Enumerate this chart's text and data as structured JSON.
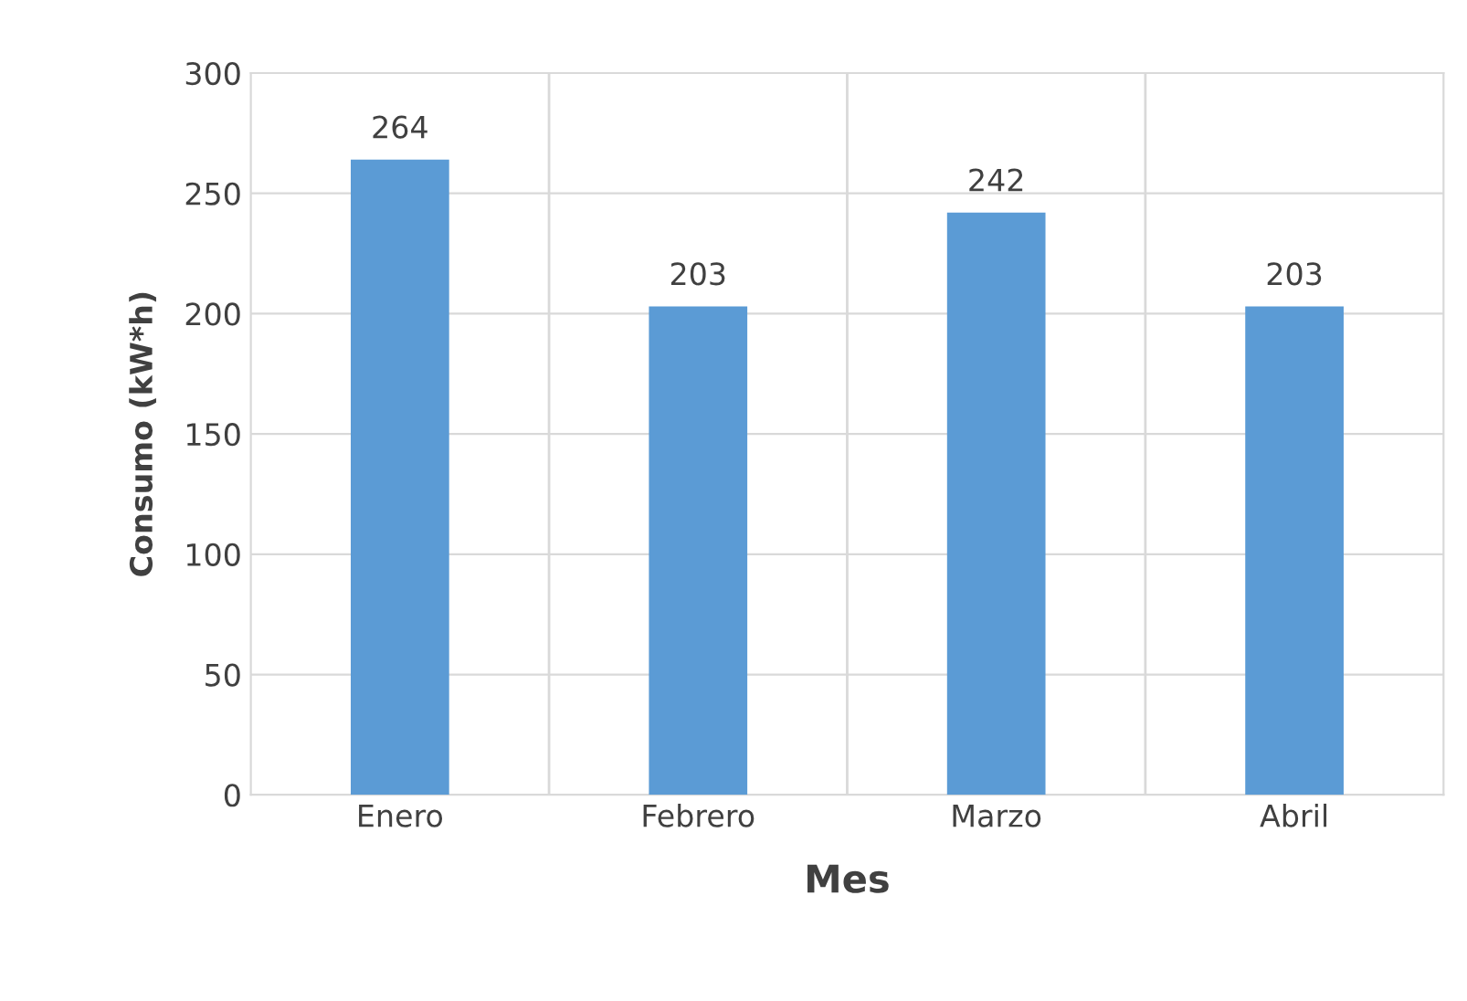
{
  "chart_data": {
    "type": "bar",
    "xlabel": "Mes",
    "ylabel": "Consumo (kW*h)",
    "categories": [
      "Enero",
      "Febrero",
      "Marzo",
      "Abril"
    ],
    "values": [
      264,
      203,
      242,
      203
    ],
    "color": "#5b9bd5",
    "ylim": [
      0,
      300
    ],
    "yticks": [
      0,
      50,
      100,
      150,
      200,
      250,
      300
    ],
    "grid": true,
    "data_labels": true
  }
}
